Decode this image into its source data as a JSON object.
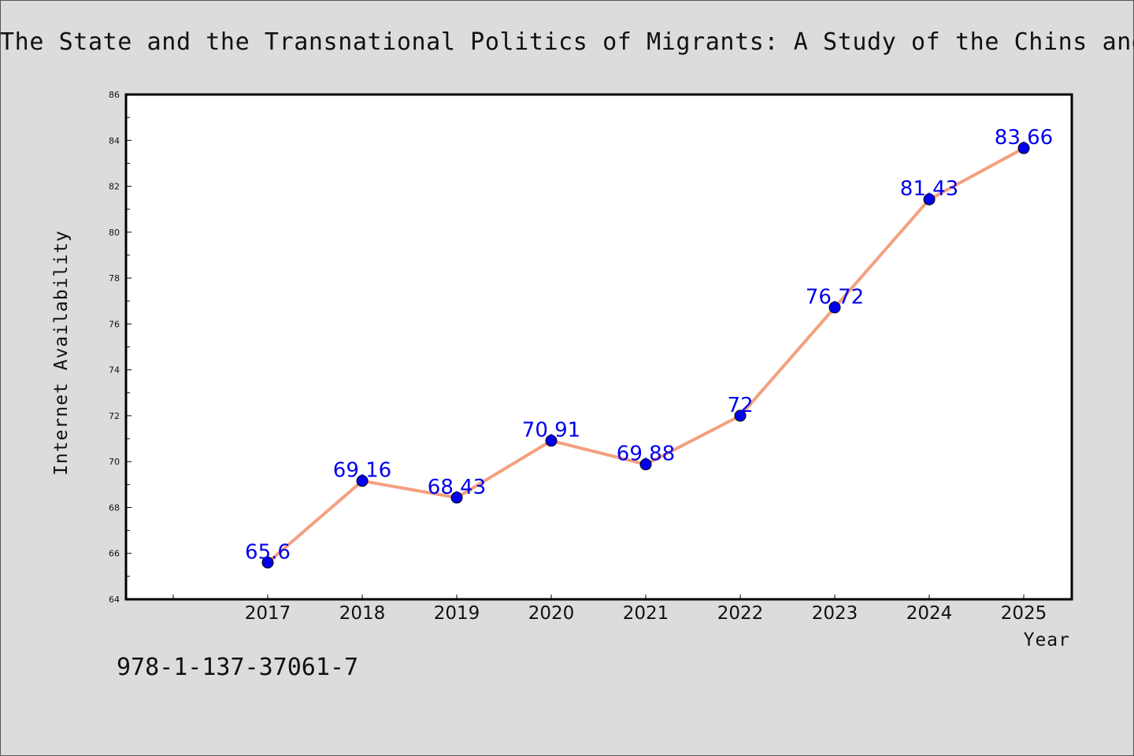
{
  "page": {
    "title": "The State and the Transnational Politics of Migrants: A Study of the Chins and t",
    "isbn": "978-1-137-37061-7"
  },
  "chart_data": {
    "type": "line",
    "x": [
      "2017",
      "2018",
      "2019",
      "2020",
      "2021",
      "2022",
      "2023",
      "2024",
      "2025"
    ],
    "series": [
      {
        "values": [
          65.6,
          69.16,
          68.43,
          70.91,
          69.88,
          72,
          76.72,
          81.43,
          83.66
        ],
        "line_color": "#f4a07f",
        "marker_color": "#0000ee"
      }
    ],
    "data_labels": [
      "65.6",
      "69.16",
      "68.43",
      "70.91",
      "69.88",
      "72",
      "76.72",
      "81.43",
      "83.66"
    ],
    "xlabel": "Year",
    "ylabel": "Internet Availability",
    "ylim": [
      64,
      86
    ],
    "yticks": [
      64,
      66,
      68,
      70,
      72,
      74,
      76,
      78,
      80,
      82,
      84,
      86
    ],
    "grid": false,
    "legend": "none"
  }
}
